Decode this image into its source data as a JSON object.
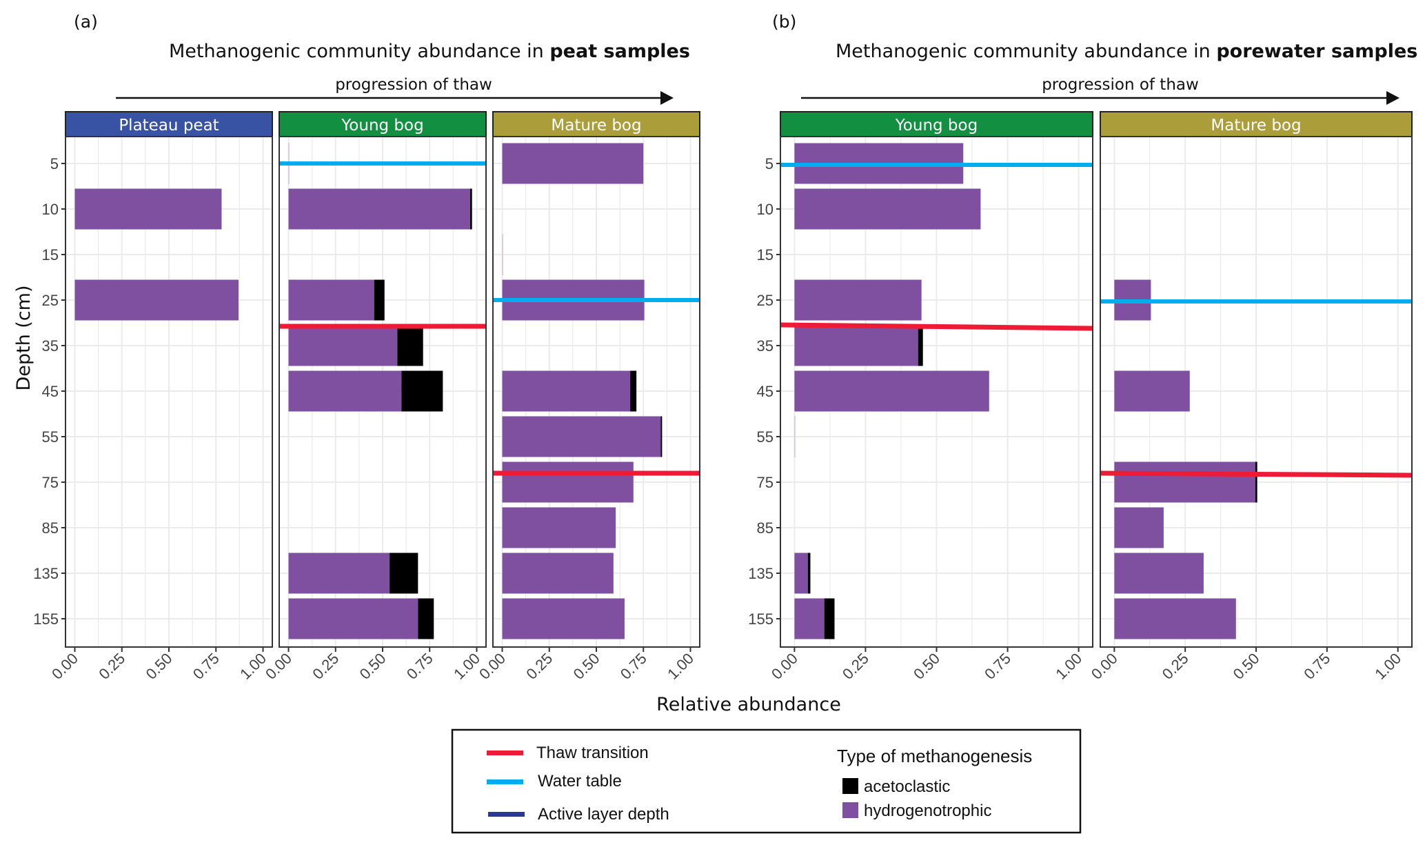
{
  "figure": {
    "panel_a_label": "(a)",
    "panel_b_label": "(b)",
    "xlabel": "Relative abundance",
    "ylabel": "Depth (cm)"
  },
  "colors": {
    "hydrogenotrophic": "#8050a0",
    "acetoclastic": "#000000",
    "thaw_transition": "#ee1b36",
    "water_table": "#00aeef",
    "active_layer": "#2b3990",
    "strip_plateau": "#3953a4",
    "strip_young": "#138f42",
    "strip_mature": "#ab9e3a"
  },
  "legend": {
    "lines": [
      {
        "label": "Thaw transition",
        "color_key": "thaw_transition"
      },
      {
        "label": "Water table",
        "color_key": "water_table"
      },
      {
        "label": "Active layer depth",
        "color_key": "active_layer"
      }
    ],
    "fill_title": "Type of methanogenesis",
    "fills": [
      {
        "label": "acetoclastic",
        "color_key": "acetoclastic"
      },
      {
        "label": "hydrogenotrophic",
        "color_key": "hydrogenotrophic"
      }
    ]
  },
  "chart_data": [
    {
      "type": "bar",
      "orientation": "horizontal-stacked",
      "title": "Methanogenic community abundance in peat samples",
      "title_plain": "Methanogenic community abundance in ",
      "title_bold": "peat samples",
      "subtitle": "progression of thaw",
      "xlabel": "Relative abundance",
      "ylabel": "Depth (cm)",
      "xlim": [
        0,
        1
      ],
      "x_ticks": [
        "0.00",
        "0.25",
        "0.50",
        "0.75",
        "1.00"
      ],
      "categories": [
        "5",
        "10",
        "15",
        "25",
        "35",
        "45",
        "55",
        "75",
        "85",
        "135",
        "155"
      ],
      "grid": true,
      "facets": [
        {
          "name": "Plateau peat",
          "strip_color_key": "strip_plateau",
          "series": [
            {
              "name": "hydrogenotrophic",
              "values": [
                0,
                0.78,
                0,
                0.87,
                0,
                0,
                0,
                0,
                0,
                0,
                0
              ]
            },
            {
              "name": "acetoclastic",
              "values": [
                0,
                0,
                0,
                0,
                0,
                0,
                0,
                0,
                0,
                0,
                0
              ]
            }
          ],
          "water_table_depth": null,
          "thaw_transition_depth": null
        },
        {
          "name": "Young bog",
          "strip_color_key": "strip_young",
          "series": [
            {
              "name": "hydrogenotrophic",
              "values": [
                0.003,
                0.965,
                0,
                0.455,
                0.578,
                0.6,
                0,
                0,
                0,
                0.537,
                0.688
              ]
            },
            {
              "name": "acetoclastic",
              "values": [
                0,
                0.01,
                0,
                0.055,
                0.137,
                0.22,
                0,
                0,
                0,
                0.151,
                0.084
              ]
            }
          ],
          "water_table_depth": "5",
          "thaw_transition_depth": "between 25 and 35"
        },
        {
          "name": "Mature bog",
          "strip_color_key": "strip_mature",
          "series": [
            {
              "name": "hydrogenotrophic",
              "values": [
                0.75,
                0,
                0.003,
                0.755,
                0,
                0.68,
                0.842,
                0.697,
                0.603,
                0.591,
                0.65
              ]
            },
            {
              "name": "acetoclastic",
              "values": [
                0,
                0,
                0,
                0,
                0,
                0.033,
                0.005,
                0,
                0,
                0,
                0
              ]
            }
          ],
          "water_table_depth": "25",
          "thaw_transition_depth": "between 55 and 75"
        }
      ]
    },
    {
      "type": "bar",
      "orientation": "horizontal-stacked",
      "title": "Methanogenic community abundance in porewater samples",
      "title_plain": "Methanogenic community abundance in ",
      "title_bold": "porewater samples",
      "subtitle": "progression of thaw",
      "xlabel": "Relative abundance",
      "ylabel": "Depth (cm)",
      "xlim": [
        0,
        1
      ],
      "x_ticks": [
        "0.00",
        "0.25",
        "0.50",
        "0.75",
        "1.00"
      ],
      "categories": [
        "5",
        "10",
        "15",
        "25",
        "35",
        "45",
        "55",
        "75",
        "85",
        "135",
        "155"
      ],
      "grid": true,
      "facets": [
        {
          "name": "Young bog",
          "strip_color_key": "strip_young",
          "series": [
            {
              "name": "hydrogenotrophic",
              "values": [
                0.594,
                0.655,
                0,
                0.447,
                0.435,
                0.685,
                0.002,
                0,
                0,
                0.047,
                0.105
              ]
            },
            {
              "name": "acetoclastic",
              "values": [
                0,
                0,
                0,
                0,
                0.017,
                0,
                0,
                0,
                0,
                0.009,
                0.036
              ]
            }
          ],
          "water_table_depth": "5",
          "thaw_transition_depth": "between 25 and 35"
        },
        {
          "name": "Mature bog",
          "strip_color_key": "strip_mature",
          "series": [
            {
              "name": "hydrogenotrophic",
              "values": [
                0,
                0,
                0,
                0.129,
                0,
                0.266,
                0,
                0.497,
                0.174,
                0.315,
                0.429
              ]
            },
            {
              "name": "acetoclastic",
              "values": [
                0,
                0,
                0,
                0,
                0,
                0,
                0,
                0.007,
                0,
                0,
                0
              ]
            }
          ],
          "water_table_depth": "25",
          "thaw_transition_depth": "between 55 and 75"
        }
      ]
    }
  ]
}
